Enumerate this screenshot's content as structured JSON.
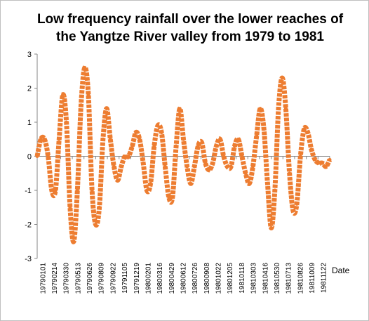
{
  "chart_data": {
    "type": "line",
    "title": "Low frequency rainfall over the lower reaches of the Yangtze River valley from 1979 to 1981",
    "xlabel": "Date",
    "ylabel": "",
    "ylim": [
      -3,
      3
    ],
    "yticks": [
      3,
      2,
      1,
      0,
      -1,
      -2,
      -3
    ],
    "grid": false,
    "legend": "none",
    "colors": {
      "series": "#ED7D31",
      "axis": "#868686"
    },
    "tick_labels": [
      "19790101",
      "19790214",
      "19790330",
      "19790513",
      "19790626",
      "19790809",
      "19790922",
      "19791105",
      "19791219",
      "19800201",
      "19800316",
      "19800429",
      "19800612",
      "19800726",
      "19800908",
      "19801022",
      "19801205",
      "19810118",
      "19810303",
      "19810416",
      "19810530",
      "19810713",
      "19810826",
      "19811009",
      "19811122"
    ],
    "series": [
      {
        "name": "",
        "values": [
          0.0,
          0.5,
          0.5,
          0.0,
          -1.0,
          -1.0,
          0.5,
          1.8,
          1.0,
          -1.5,
          -2.5,
          -1.0,
          1.5,
          2.6,
          1.8,
          -1.0,
          -2.0,
          -1.5,
          0.5,
          1.4,
          0.5,
          -0.3,
          -0.7,
          -0.3,
          0.0,
          0.0,
          0.3,
          0.7,
          0.5,
          -0.2,
          -1.0,
          -0.8,
          0.3,
          0.9,
          0.7,
          -0.3,
          -1.2,
          -1.2,
          0.3,
          1.4,
          0.5,
          -0.3,
          -0.8,
          -0.3,
          0.3,
          0.4,
          -0.2,
          -0.4,
          -0.2,
          0.3,
          0.5,
          0.0,
          -0.3,
          -0.3,
          0.3,
          0.5,
          0.0,
          -0.5,
          -0.8,
          -0.3,
          0.6,
          1.4,
          0.8,
          -0.8,
          -2.1,
          -1.0,
          1.4,
          2.3,
          1.4,
          -0.5,
          -1.6,
          -1.4,
          0.0,
          0.8,
          0.7,
          0.2,
          -0.1,
          -0.2,
          -0.2,
          -0.3,
          -0.1
        ]
      }
    ]
  }
}
